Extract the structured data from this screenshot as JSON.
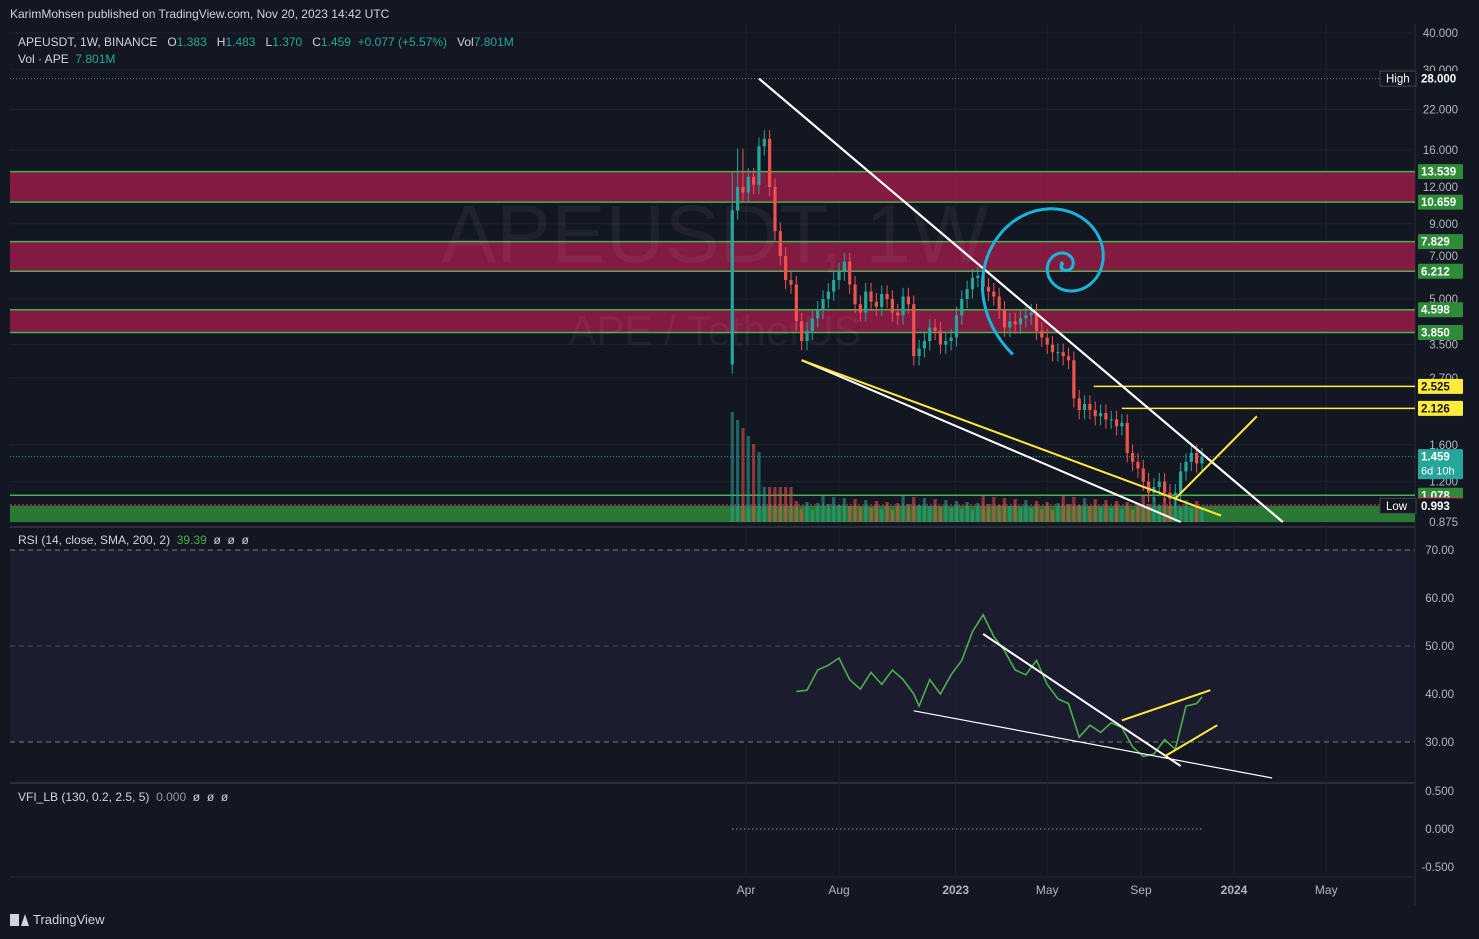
{
  "header": {
    "published": "KarimMohsen published on TradingView.com, Nov 20, 2023 14:42 UTC",
    "symbol": "APEUSDT, 1W, BINANCE",
    "o_label": "O",
    "o": "1.383",
    "h_label": "H",
    "h": "1.483",
    "l_label": "L",
    "l": "1.370",
    "c_label": "C",
    "c": "1.459",
    "change": "+0.077 (+5.57%)",
    "vol_label": "Vol",
    "vol": "7.801M",
    "vol_study": "Vol · APE",
    "vol_value": "7.801M"
  },
  "watermark": {
    "line1": "APEUSDT, 1W",
    "line2": "APE / TetherUS"
  },
  "brand": "TradingView",
  "colors": {
    "bg": "#131722",
    "up": "#26a69a",
    "down": "#ef5350",
    "zone_red": "#a81c4c",
    "zone_green": "#2e8b37",
    "line_green": "#4caf50",
    "yellow": "#ffeb3b",
    "spiral": "#1ab4d8",
    "white": "#ffffff",
    "rsi": "#4caf50"
  },
  "chart_data": [
    {
      "type": "candlestick",
      "title": "APEUSDT, 1W, BINANCE",
      "scale": "log",
      "ylim": [
        0.875,
        40
      ],
      "y_ticks": [
        40,
        30,
        22,
        16,
        12,
        9,
        7,
        5,
        3.5,
        2.7,
        1.6,
        1.2,
        0.875
      ],
      "y_tick_labels": [
        "40.000",
        "30.000",
        "22.000",
        "16.000",
        "12.000",
        "9.000",
        "7.000",
        "5.000",
        "3.500",
        "2.700",
        "1.600",
        "1.200",
        "0.875"
      ],
      "x_tick_labels": [
        "Apr",
        "Aug",
        "2023",
        "May",
        "Sep",
        "2024",
        "May"
      ],
      "x_ticks": [
        "2022-04",
        "2022-08",
        "2023-01",
        "2023-05",
        "2023-09",
        "2024-01",
        "2024-05"
      ],
      "price_labels": [
        {
          "text": "High",
          "value": "28.000"
        },
        {
          "value": "13.539"
        },
        {
          "value": "10.659"
        },
        {
          "value": "7.829"
        },
        {
          "value": "6.212"
        },
        {
          "value": "4.598"
        },
        {
          "value": "3.850"
        },
        {
          "value": "2.525"
        },
        {
          "value": "2.126"
        },
        {
          "value": "1.459",
          "sub": "6d 10h"
        },
        {
          "value": "1.078"
        },
        {
          "value": "1.000"
        },
        {
          "text": "Low",
          "value": "0.993"
        }
      ],
      "resistance_zones": [
        [
          10.659,
          13.539
        ],
        [
          6.212,
          7.829
        ],
        [
          3.85,
          4.598
        ]
      ],
      "support_zone": [
        0.875,
        0.993
      ],
      "levels": [
        1.078,
        1.0
      ],
      "yellow_levels": [
        2.525,
        2.126
      ],
      "close_series": [
        {
          "date": "2022-03-14",
          "close": 10.0
        },
        {
          "date": "2022-03-21",
          "close": 12.0
        },
        {
          "date": "2022-03-28",
          "close": 11.5
        },
        {
          "date": "2022-04-04",
          "close": 13.0
        },
        {
          "date": "2022-04-11",
          "close": 12.2
        },
        {
          "date": "2022-04-18",
          "close": 16.5
        },
        {
          "date": "2022-04-25",
          "close": 17.5
        },
        {
          "date": "2022-05-02",
          "close": 12.0
        },
        {
          "date": "2022-05-09",
          "close": 8.5
        },
        {
          "date": "2022-05-16",
          "close": 7.0
        },
        {
          "date": "2022-05-23",
          "close": 5.8
        },
        {
          "date": "2022-05-30",
          "close": 5.6
        },
        {
          "date": "2022-06-06",
          "close": 4.2
        },
        {
          "date": "2022-06-13",
          "close": 3.6
        },
        {
          "date": "2022-06-20",
          "close": 3.9
        },
        {
          "date": "2022-06-27",
          "close": 4.3
        },
        {
          "date": "2022-07-04",
          "close": 4.6
        },
        {
          "date": "2022-07-11",
          "close": 5.0
        },
        {
          "date": "2022-07-18",
          "close": 5.3
        },
        {
          "date": "2022-07-25",
          "close": 5.8
        },
        {
          "date": "2022-08-01",
          "close": 6.2
        },
        {
          "date": "2022-08-08",
          "close": 6.7
        },
        {
          "date": "2022-08-15",
          "close": 5.6
        },
        {
          "date": "2022-08-22",
          "close": 4.8
        },
        {
          "date": "2022-08-29",
          "close": 4.5
        },
        {
          "date": "2022-09-05",
          "close": 5.3
        },
        {
          "date": "2022-09-12",
          "close": 4.9
        },
        {
          "date": "2022-09-19",
          "close": 4.7
        },
        {
          "date": "2022-09-26",
          "close": 5.2
        },
        {
          "date": "2022-10-03",
          "close": 5.0
        },
        {
          "date": "2022-10-10",
          "close": 4.5
        },
        {
          "date": "2022-10-17",
          "close": 4.4
        },
        {
          "date": "2022-10-24",
          "close": 5.1
        },
        {
          "date": "2022-10-31",
          "close": 4.8
        },
        {
          "date": "2022-11-07",
          "close": 3.2
        },
        {
          "date": "2022-11-14",
          "close": 3.4
        },
        {
          "date": "2022-11-21",
          "close": 3.6
        },
        {
          "date": "2022-11-28",
          "close": 4.0
        },
        {
          "date": "2022-12-05",
          "close": 3.9
        },
        {
          "date": "2022-12-12",
          "close": 3.5
        },
        {
          "date": "2022-12-19",
          "close": 3.6
        },
        {
          "date": "2022-12-26",
          "close": 3.7
        },
        {
          "date": "2023-01-02",
          "close": 4.4
        },
        {
          "date": "2023-01-09",
          "close": 5.0
        },
        {
          "date": "2023-01-16",
          "close": 5.4
        },
        {
          "date": "2023-01-23",
          "close": 5.9
        },
        {
          "date": "2023-01-30",
          "close": 6.0
        },
        {
          "date": "2023-02-06",
          "close": 5.5
        },
        {
          "date": "2023-02-13",
          "close": 5.3
        },
        {
          "date": "2023-02-20",
          "close": 5.1
        },
        {
          "date": "2023-02-27",
          "close": 4.6
        },
        {
          "date": "2023-03-06",
          "close": 4.0
        },
        {
          "date": "2023-03-13",
          "close": 4.2
        },
        {
          "date": "2023-03-20",
          "close": 4.1
        },
        {
          "date": "2023-03-27",
          "close": 4.3
        },
        {
          "date": "2023-04-03",
          "close": 4.4
        },
        {
          "date": "2023-04-10",
          "close": 4.5
        },
        {
          "date": "2023-04-17",
          "close": 3.9
        },
        {
          "date": "2023-04-24",
          "close": 3.7
        },
        {
          "date": "2023-05-01",
          "close": 3.5
        },
        {
          "date": "2023-05-08",
          "close": 3.3
        },
        {
          "date": "2023-05-15",
          "close": 3.3
        },
        {
          "date": "2023-05-22",
          "close": 3.2
        },
        {
          "date": "2023-05-29",
          "close": 3.1
        },
        {
          "date": "2023-06-05",
          "close": 2.3
        },
        {
          "date": "2023-06-12",
          "close": 2.1
        },
        {
          "date": "2023-06-19",
          "close": 2.2
        },
        {
          "date": "2023-06-26",
          "close": 2.1
        },
        {
          "date": "2023-07-03",
          "close": 2.0
        },
        {
          "date": "2023-07-10",
          "close": 2.05
        },
        {
          "date": "2023-07-17",
          "close": 1.95
        },
        {
          "date": "2023-07-24",
          "close": 1.95
        },
        {
          "date": "2023-07-31",
          "close": 1.85
        },
        {
          "date": "2023-08-07",
          "close": 1.9
        },
        {
          "date": "2023-08-14",
          "close": 1.5
        },
        {
          "date": "2023-08-21",
          "close": 1.4
        },
        {
          "date": "2023-08-28",
          "close": 1.33
        },
        {
          "date": "2023-09-04",
          "close": 1.2
        },
        {
          "date": "2023-09-11",
          "close": 1.1
        },
        {
          "date": "2023-09-18",
          "close": 1.15
        },
        {
          "date": "2023-09-25",
          "close": 1.2
        },
        {
          "date": "2023-10-02",
          "close": 1.1
        },
        {
          "date": "2023-10-09",
          "close": 1.05
        },
        {
          "date": "2023-10-16",
          "close": 1.1
        },
        {
          "date": "2023-10-23",
          "close": 1.3
        },
        {
          "date": "2023-10-30",
          "close": 1.4
        },
        {
          "date": "2023-11-06",
          "close": 1.5
        },
        {
          "date": "2023-11-13",
          "close": 1.383
        },
        {
          "date": "2023-11-20",
          "close": 1.459
        }
      ]
    },
    {
      "type": "line",
      "title": "RSI (14, close, SMA, 200, 2)",
      "value_label": "39.39",
      "extra_labels": [
        "ø",
        "ø",
        "ø"
      ],
      "ylim": [
        22,
        73
      ],
      "y_ticks": [
        70,
        60,
        50,
        40,
        30
      ],
      "y_tick_labels": [
        "70.00",
        "60.00",
        "50.00",
        "40.00",
        "30.00"
      ],
      "bands": [
        30,
        70
      ],
      "series": [
        {
          "values": [
            {
              "date": "2022-06-06",
              "v": 40.5
            },
            {
              "date": "2022-06-20",
              "v": 40.8
            },
            {
              "date": "2022-07-04",
              "v": 45
            },
            {
              "date": "2022-07-18",
              "v": 46
            },
            {
              "date": "2022-08-01",
              "v": 47.5
            },
            {
              "date": "2022-08-15",
              "v": 43
            },
            {
              "date": "2022-08-29",
              "v": 41
            },
            {
              "date": "2022-09-12",
              "v": 44.5
            },
            {
              "date": "2022-09-26",
              "v": 42
            },
            {
              "date": "2022-10-10",
              "v": 45
            },
            {
              "date": "2022-10-24",
              "v": 43
            },
            {
              "date": "2022-11-07",
              "v": 40
            },
            {
              "date": "2022-11-14",
              "v": 37.5
            },
            {
              "date": "2022-11-28",
              "v": 43
            },
            {
              "date": "2022-12-12",
              "v": 40
            },
            {
              "date": "2022-12-26",
              "v": 44
            },
            {
              "date": "2023-01-09",
              "v": 47
            },
            {
              "date": "2023-01-23",
              "v": 53
            },
            {
              "date": "2023-02-06",
              "v": 56.5
            },
            {
              "date": "2023-02-20",
              "v": 52
            },
            {
              "date": "2023-03-06",
              "v": 49
            },
            {
              "date": "2023-03-20",
              "v": 45
            },
            {
              "date": "2023-04-03",
              "v": 44
            },
            {
              "date": "2023-04-17",
              "v": 47
            },
            {
              "date": "2023-05-01",
              "v": 42
            },
            {
              "date": "2023-05-15",
              "v": 39
            },
            {
              "date": "2023-05-29",
              "v": 38
            },
            {
              "date": "2023-06-12",
              "v": 31
            },
            {
              "date": "2023-06-26",
              "v": 33.5
            },
            {
              "date": "2023-07-10",
              "v": 32
            },
            {
              "date": "2023-07-24",
              "v": 34
            },
            {
              "date": "2023-08-07",
              "v": 33
            },
            {
              "date": "2023-08-21",
              "v": 29
            },
            {
              "date": "2023-09-04",
              "v": 27
            },
            {
              "date": "2023-09-18",
              "v": 27.5
            },
            {
              "date": "2023-10-02",
              "v": 30.5
            },
            {
              "date": "2023-10-16",
              "v": 28.5
            },
            {
              "date": "2023-10-30",
              "v": 37.5
            },
            {
              "date": "2023-11-13",
              "v": 38
            },
            {
              "date": "2023-11-20",
              "v": 39.4
            }
          ]
        }
      ]
    },
    {
      "type": "line",
      "title": "VFI_LB (130, 0.2, 2.5, 5)",
      "value_label": "0.000",
      "extra_labels": [
        "ø",
        "ø",
        "ø"
      ],
      "ylim": [
        -0.55,
        0.75
      ],
      "y_ticks": [
        0.5,
        0,
        -0.5
      ],
      "y_tick_labels": [
        "0.500",
        "0.000",
        "-0.500"
      ]
    }
  ]
}
